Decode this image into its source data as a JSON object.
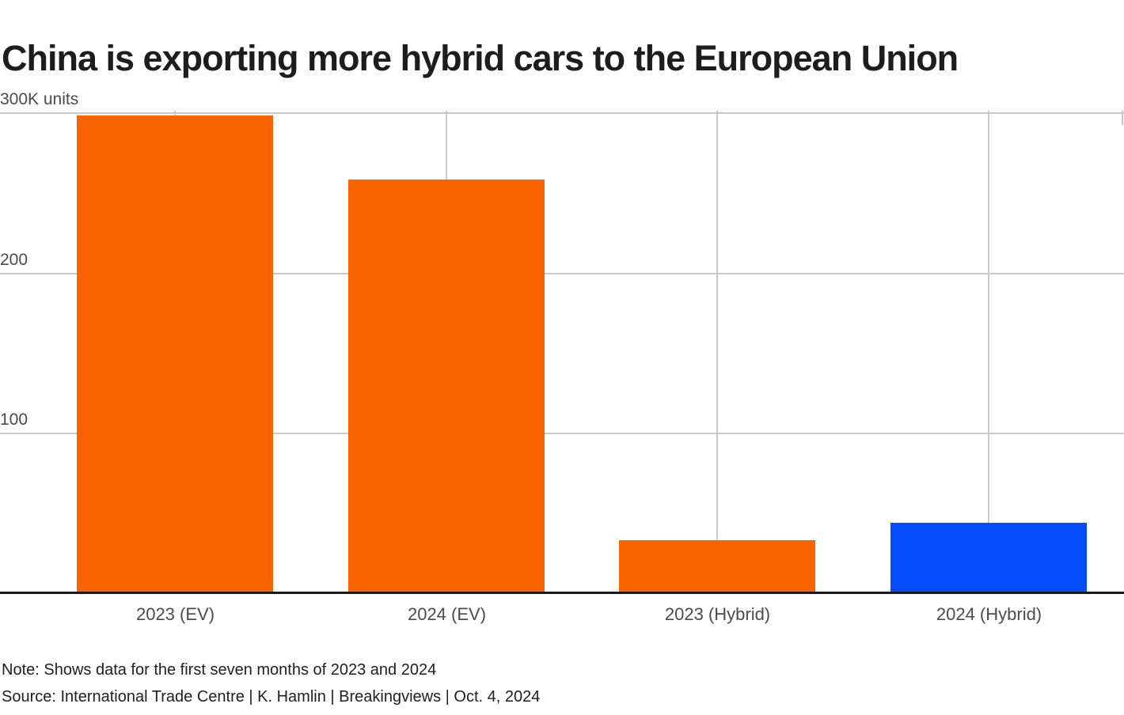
{
  "title": "China is exporting more hybrid cars to the European Union",
  "footer": {
    "note": "Note: Shows data for the first seven months of 2023 and 2024",
    "source": "Source: International Trade Centre | K. Hamlin | Breakingviews | Oct. 4, 2024"
  },
  "colors": {
    "ev_orange": "#f96400",
    "hybrid_blue": "#054dfa",
    "gridline": "#c9c9c9",
    "axis": "#1a1a1a",
    "tick_label": "#4a4a51",
    "title_text": "#1d1d1d"
  },
  "chart_data": {
    "type": "bar",
    "title": "China is exporting more hybrid cars to the European Union",
    "unit": "K units",
    "categories": [
      "2023 (EV)",
      "2024 (EV)",
      "2023 (Hybrid)",
      "2024 (Hybrid)"
    ],
    "values": [
      298,
      258,
      32,
      43
    ],
    "bar_colors": [
      "#f96400",
      "#f96400",
      "#f96400",
      "#054dfa"
    ],
    "ylabel": "300K units",
    "ylim": [
      0,
      300
    ],
    "yticks": [
      {
        "value": 300,
        "label": "300K units"
      },
      {
        "value": 200,
        "label": "200"
      },
      {
        "value": 100,
        "label": "100"
      }
    ],
    "grid": "horizontal gridlines at 100/200/300; vertical gridline at each category center; dark baseline axis",
    "legend": "none"
  }
}
